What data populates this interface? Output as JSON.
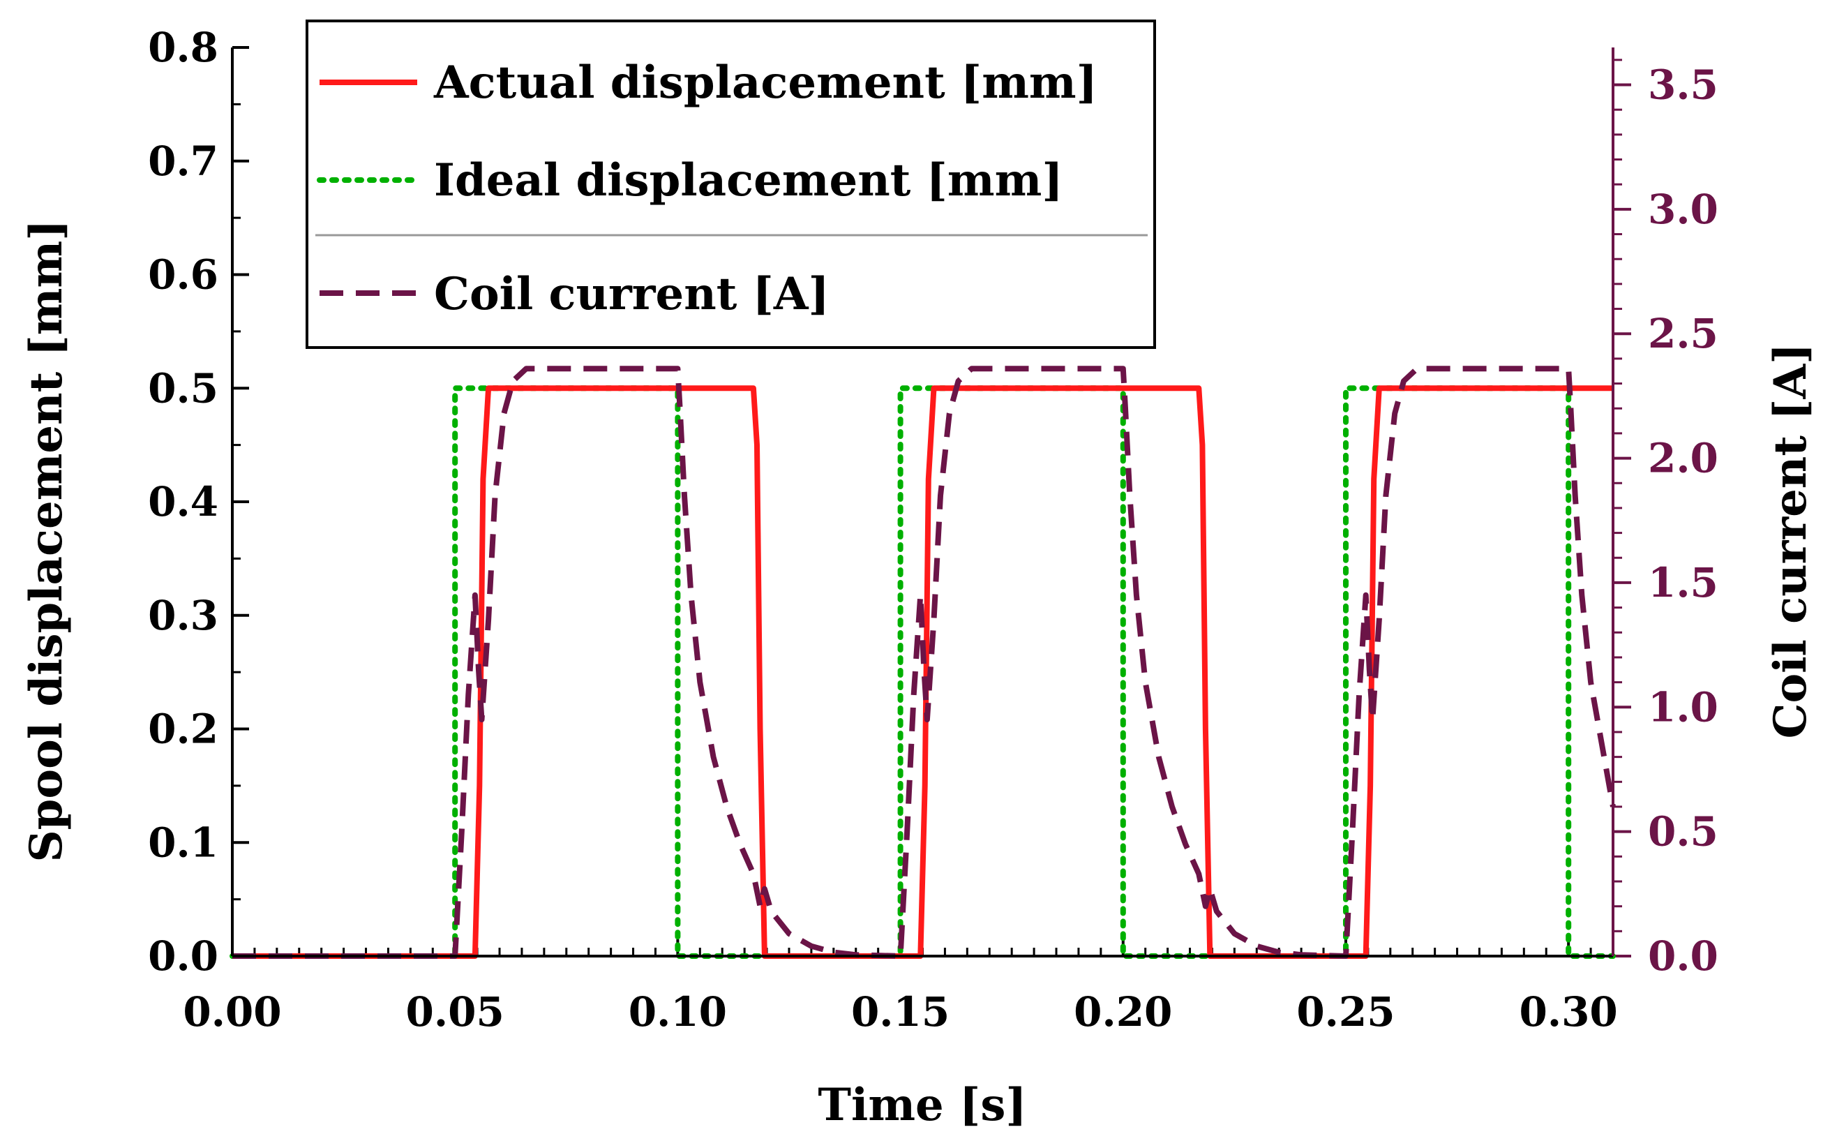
{
  "chart_data": {
    "type": "line",
    "xlabel": "Time [s]",
    "ylabel": "Spool displacement [mm]",
    "y2label": "Coil current [A]",
    "xlim": [
      0,
      0.31
    ],
    "ylim": [
      0,
      0.8
    ],
    "y2lim": [
      0,
      3.65
    ],
    "x_ticks": [
      "0.00",
      "0.05",
      "0.10",
      "0.15",
      "0.20",
      "0.25",
      "0.30"
    ],
    "y_ticks": [
      "0.0",
      "0.1",
      "0.2",
      "0.3",
      "0.4",
      "0.5",
      "0.6",
      "0.7",
      "0.8"
    ],
    "y2_ticks": [
      "0.0",
      "0.5",
      "1.0",
      "1.5",
      "2.0",
      "2.5",
      "3.0",
      "3.5"
    ],
    "legend_placement": "top-left",
    "colors": {
      "actual": "#ff1a1a",
      "ideal": "#00b000",
      "current": "#6b1447",
      "right_axis": "#6b1447",
      "axis": "#000000",
      "legend_separator": "#999999"
    },
    "series": [
      {
        "name": "Actual displacement [mm]",
        "axis": "left",
        "style": "solid",
        "x": [
          0,
          0.0545,
          0.0555,
          0.0563,
          0.0575,
          0.117,
          0.1178,
          0.1185,
          0.1195,
          0.1545,
          0.1555,
          0.1563,
          0.1575,
          0.217,
          0.2178,
          0.2185,
          0.2195,
          0.2545,
          0.2555,
          0.2563,
          0.2575,
          0.31
        ],
        "values": [
          0,
          0,
          0.15,
          0.42,
          0.5,
          0.5,
          0.45,
          0.2,
          0,
          0,
          0.15,
          0.42,
          0.5,
          0.5,
          0.45,
          0.2,
          0,
          0,
          0.15,
          0.42,
          0.5,
          0.5
        ]
      },
      {
        "name": "Ideal displacement [mm]",
        "axis": "left",
        "style": "dotted",
        "x": [
          0,
          0.05,
          0.05,
          0.1,
          0.1,
          0.15,
          0.15,
          0.2,
          0.2,
          0.25,
          0.25,
          0.3,
          0.3,
          0.31
        ],
        "values": [
          0,
          0,
          0.5,
          0.5,
          0,
          0,
          0.5,
          0.5,
          0,
          0,
          0.5,
          0.5,
          0,
          0
        ]
      },
      {
        "name": "Coil current [A]",
        "axis": "right",
        "style": "dashed",
        "x": [
          0,
          0.05,
          0.0515,
          0.053,
          0.0545,
          0.0553,
          0.056,
          0.0575,
          0.059,
          0.061,
          0.063,
          0.066,
          0.07,
          0.1,
          0.1005,
          0.1015,
          0.103,
          0.105,
          0.108,
          0.111,
          0.114,
          0.117,
          0.1185,
          0.1195,
          0.121,
          0.125,
          0.13,
          0.135,
          0.14,
          0.15,
          0.1515,
          0.153,
          0.1545,
          0.1553,
          0.156,
          0.1575,
          0.159,
          0.161,
          0.163,
          0.166,
          0.17,
          0.2,
          0.2005,
          0.2015,
          0.203,
          0.205,
          0.208,
          0.211,
          0.214,
          0.217,
          0.2185,
          0.2195,
          0.221,
          0.225,
          0.23,
          0.235,
          0.24,
          0.25,
          0.2515,
          0.253,
          0.2545,
          0.2553,
          0.256,
          0.2575,
          0.259,
          0.261,
          0.263,
          0.266,
          0.27,
          0.3,
          0.3005,
          0.3015,
          0.303,
          0.305,
          0.308,
          0.31
        ],
        "values": [
          0,
          0,
          0.5,
          1.05,
          1.45,
          1.15,
          0.95,
          1.35,
          1.85,
          2.18,
          2.31,
          2.36,
          2.36,
          2.36,
          2.2,
          1.85,
          1.45,
          1.1,
          0.8,
          0.6,
          0.45,
          0.33,
          0.2,
          0.27,
          0.18,
          0.09,
          0.04,
          0.015,
          0.005,
          0,
          0.5,
          1.05,
          1.45,
          1.15,
          0.95,
          1.35,
          1.85,
          2.18,
          2.31,
          2.36,
          2.36,
          2.36,
          2.2,
          1.85,
          1.45,
          1.1,
          0.8,
          0.6,
          0.45,
          0.33,
          0.2,
          0.27,
          0.18,
          0.09,
          0.04,
          0.015,
          0.005,
          0,
          0.5,
          1.05,
          1.45,
          1.15,
          0.95,
          1.35,
          1.85,
          2.18,
          2.31,
          2.36,
          2.36,
          2.36,
          2.2,
          1.85,
          1.45,
          1.1,
          0.8,
          0.6
        ]
      }
    ]
  }
}
